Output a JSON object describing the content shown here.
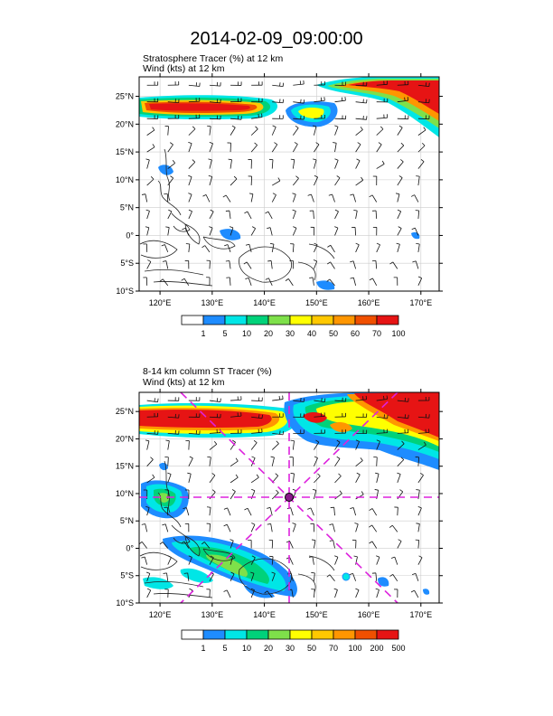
{
  "title": "2014-02-09_09:00:00",
  "colors": {
    "tracer_palette": [
      "#ffffff",
      "#1e8cff",
      "#00e6e6",
      "#00d27a",
      "#7ee04a",
      "#ffff00",
      "#ffc800",
      "#ff9600",
      "#f05000",
      "#e61414"
    ],
    "land_outline": "#222222",
    "grid_line": "#cccccc",
    "cross_section_lines": "#dd22dd"
  },
  "panels": [
    {
      "id": "top",
      "label_line1": "Stratosphere Tracer   (%)    at   12 km",
      "label_line2": "Wind   (kts)     at   12 km",
      "lat_ticks": [
        "25°N",
        "20°N",
        "15°N",
        "10°N",
        "5°N",
        "0°",
        "5°S",
        "10°S"
      ],
      "lon_ticks": [
        "120°E",
        "130°E",
        "140°E",
        "150°E",
        "160°E",
        "170°E"
      ],
      "colorbar_labels": [
        "1",
        "5",
        "10",
        "20",
        "30",
        "40",
        "50",
        "60",
        "70",
        "100"
      ]
    },
    {
      "id": "bottom",
      "label_line1": "8-14 km column ST Tracer    (%)",
      "label_line2": "Wind   (kts)     at   12 km",
      "lat_ticks": [
        "25°N",
        "20°N",
        "15°N",
        "10°N",
        "5°N",
        "0°",
        "5°S",
        "10°S"
      ],
      "lon_ticks": [
        "120°E",
        "130°E",
        "140°E",
        "150°E",
        "160°E",
        "170°E"
      ],
      "colorbar_labels": [
        "1",
        "5",
        "10",
        "20",
        "30",
        "50",
        "70",
        "100",
        "200",
        "500"
      ],
      "marked_point": {
        "lon": 145,
        "lat": 10
      }
    }
  ]
}
